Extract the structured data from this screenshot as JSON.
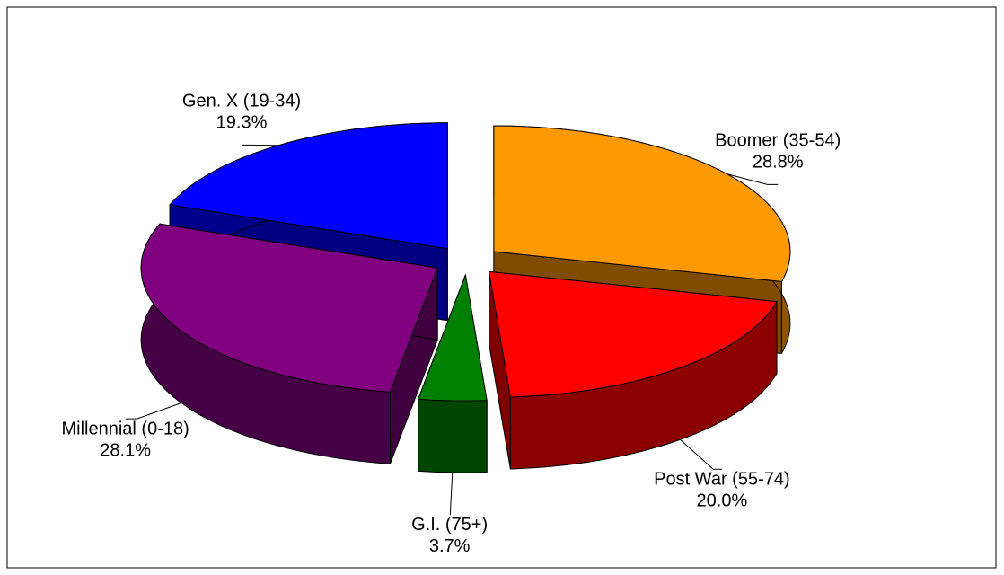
{
  "chart_data": {
    "type": "pie3d",
    "categories": [
      "Boomer (35-54)",
      "Post War (55-74)",
      "G.I. (75+)",
      "Millennial (0-18)",
      "Gen. X (19-34)"
    ],
    "values": [
      28.8,
      20.0,
      3.7,
      28.1,
      19.3
    ],
    "value_labels": [
      "28.8%",
      "20.0%",
      "3.7%",
      "28.1%",
      "19.3%"
    ],
    "colors": [
      "#ff9900",
      "#ff0000",
      "#008000",
      "#800080",
      "#0000ff"
    ]
  }
}
